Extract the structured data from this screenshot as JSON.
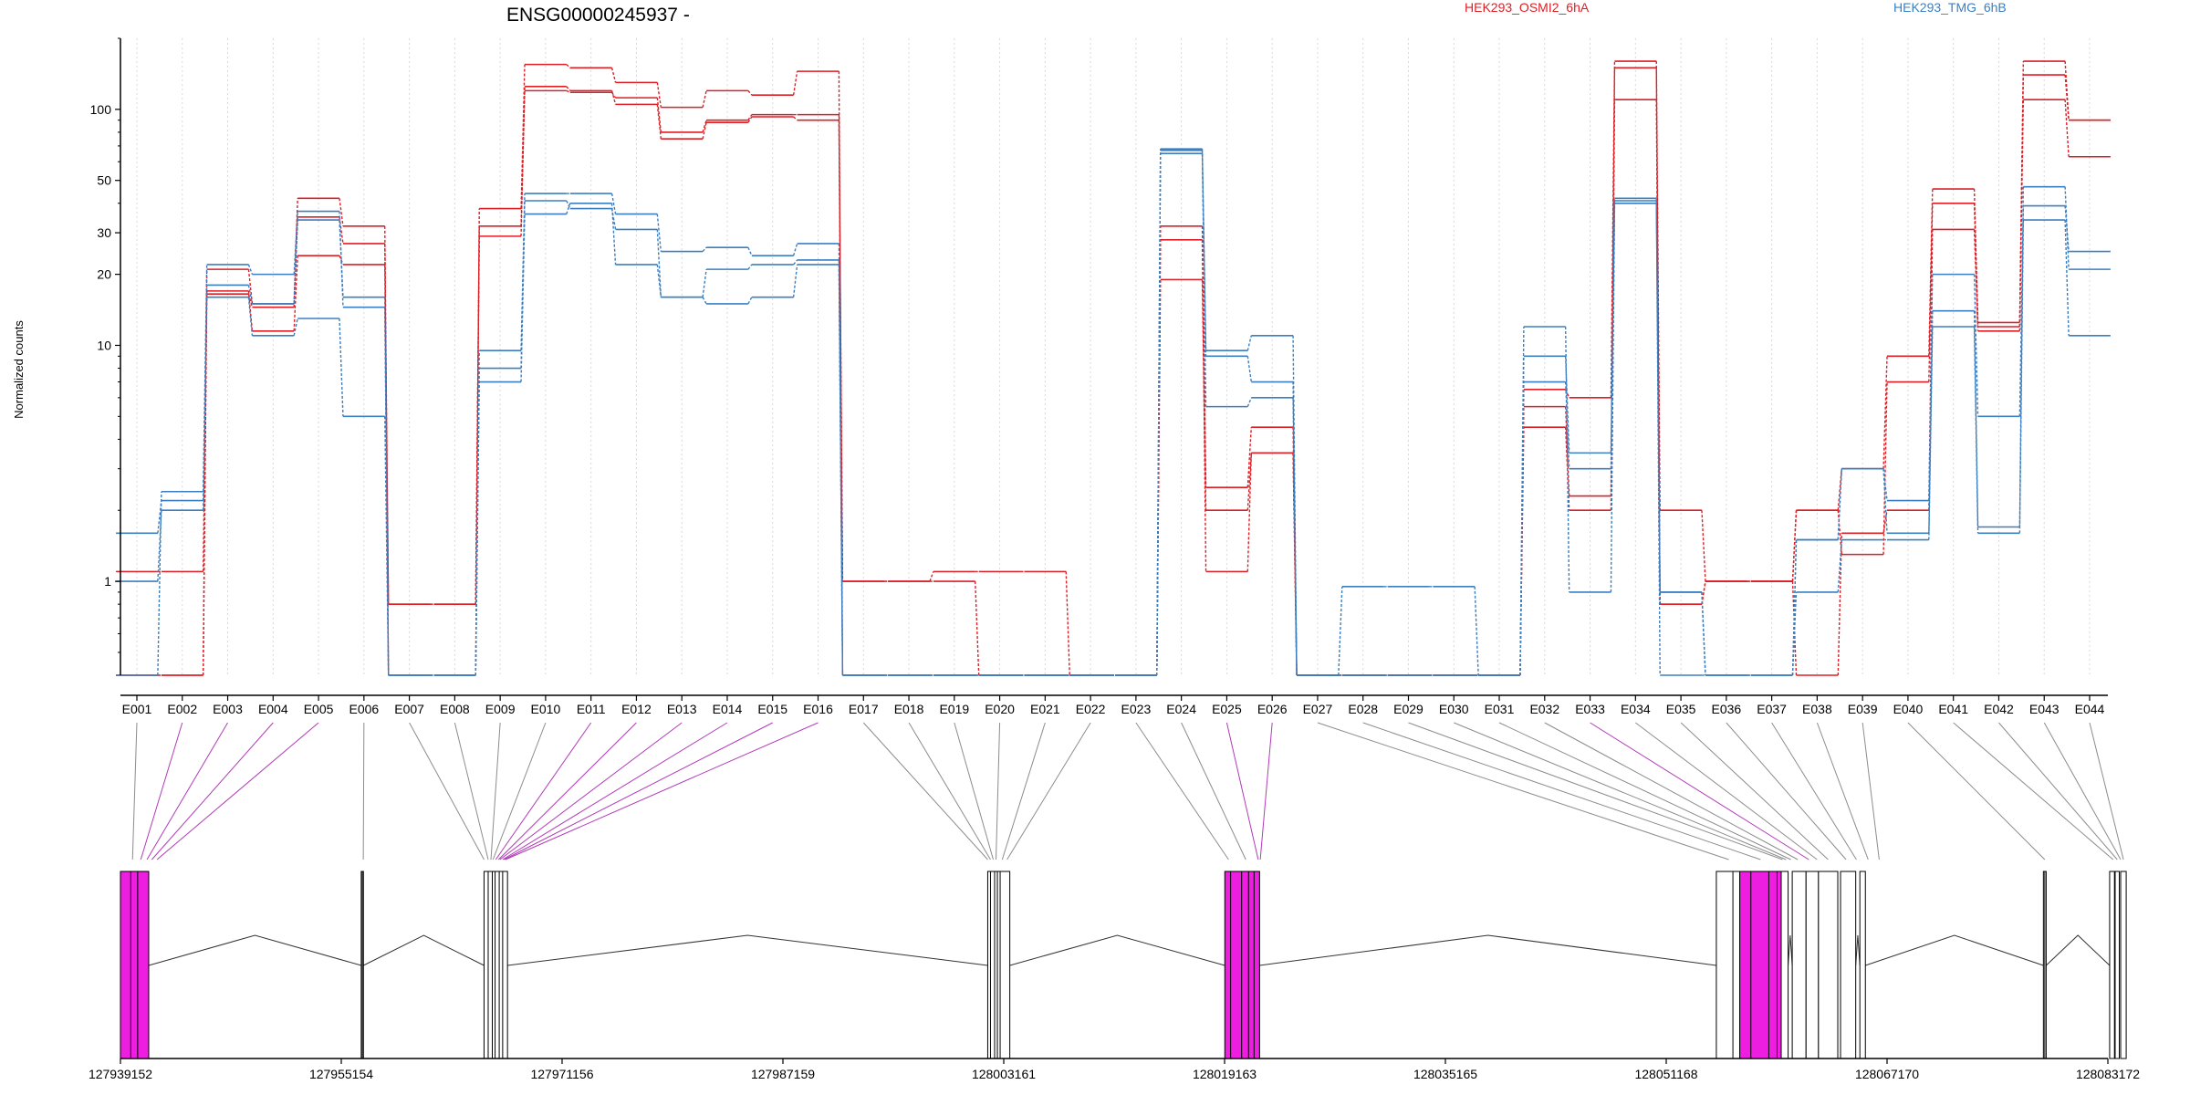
{
  "title": "ENSG00000245937 -",
  "y_axis_label": "Normalized counts",
  "legend": [
    {
      "label": "HEK293_OSMI2_6hA",
      "color": "#dd1f26"
    },
    {
      "label": "HEK293_TMG_6hB",
      "color": "#3b7fc0"
    }
  ],
  "chart_data": {
    "type": "line",
    "yscale": "log",
    "ylim": [
      0.4,
      200
    ],
    "yticks": [
      1,
      10,
      20,
      30,
      50,
      100
    ],
    "ytick_labels": [
      "1",
      "10",
      "20",
      "30",
      "50",
      "100"
    ],
    "exons": [
      "E001",
      "E002",
      "E003",
      "E004",
      "E005",
      "E006",
      "E007",
      "E008",
      "E009",
      "E010",
      "E011",
      "E012",
      "E013",
      "E014",
      "E015",
      "E016",
      "E017",
      "E018",
      "E019",
      "E020",
      "E021",
      "E022",
      "E023",
      "E024",
      "E025",
      "E026",
      "E027",
      "E028",
      "E029",
      "E030",
      "E031",
      "E032",
      "E033",
      "E034",
      "E035",
      "E036",
      "E037",
      "E038",
      "E039",
      "E040",
      "E041",
      "E042",
      "E043",
      "E044"
    ],
    "series": [
      {
        "color": "#dd1f26",
        "values": [
          1.1,
          1.1,
          17,
          11.5,
          24,
          22,
          0.8,
          0.8,
          29,
          125,
          120,
          105,
          75,
          88,
          93,
          90,
          1,
          1,
          1.1,
          1.1,
          1.1,
          0.4,
          0.4,
          19,
          2,
          3.5,
          0.4,
          0.4,
          0.4,
          0.4,
          0.4,
          4.5,
          2,
          110,
          0.8,
          1,
          1,
          0.4,
          1.6,
          2,
          31,
          11.5,
          110,
          63
        ]
      },
      {
        "color": "#dd1f26",
        "values": [
          0.4,
          0.4,
          16.5,
          14.5,
          35,
          27,
          0.8,
          0.8,
          32,
          120,
          118,
          112,
          80,
          90,
          95,
          95,
          1,
          1,
          1,
          0.4,
          0.4,
          0.4,
          0.4,
          28,
          1.1,
          3.5,
          0.4,
          0.4,
          0.4,
          0.4,
          0.4,
          5.5,
          2.3,
          150,
          0.8,
          1,
          1,
          2,
          1.3,
          7,
          40,
          12,
          140,
          90
        ]
      },
      {
        "color": "#dd1f26",
        "values": [
          0.4,
          0.4,
          21,
          15,
          42,
          32,
          0.4,
          0.4,
          38,
          155,
          150,
          130,
          102,
          120,
          115,
          145,
          0.4,
          0.4,
          0.4,
          0.4,
          0.4,
          0.4,
          0.4,
          32,
          2.5,
          4.5,
          0.4,
          0.4,
          0.4,
          0.4,
          0.4,
          6.5,
          6,
          160,
          2,
          1,
          1,
          2,
          3,
          9,
          46,
          12.5,
          160,
          90
        ]
      },
      {
        "color": "#3b7fc0",
        "values": [
          1,
          2,
          16,
          11,
          13,
          5,
          0.4,
          0.4,
          7,
          36,
          40,
          22,
          16,
          15,
          16,
          22,
          0.4,
          0.4,
          0.4,
          0.4,
          0.4,
          0.4,
          0.4,
          65,
          5.5,
          6,
          0.4,
          0.4,
          0.4,
          0.4,
          0.4,
          7,
          3,
          40,
          0.9,
          0.4,
          0.4,
          0.9,
          1.5,
          1.5,
          12,
          1.6,
          34,
          11
        ]
      },
      {
        "color": "#3b7fc0",
        "values": [
          1.6,
          2.2,
          18,
          15,
          34,
          16,
          0.4,
          0.4,
          8,
          41,
          38,
          31,
          16,
          21,
          22,
          23,
          0.4,
          0.4,
          0.4,
          0.4,
          0.4,
          0.4,
          0.4,
          68,
          9,
          7,
          0.4,
          0.4,
          0.4,
          0.4,
          0.4,
          9,
          3.5,
          42,
          0.9,
          0.4,
          0.4,
          1.5,
          3,
          2.2,
          20,
          5,
          39,
          25
        ]
      },
      {
        "color": "#3b7fc0",
        "values": [
          0.4,
          2.4,
          22,
          20,
          37,
          14.5,
          0.4,
          0.4,
          9.5,
          44,
          44,
          36,
          25,
          26,
          24,
          27,
          0.4,
          0.4,
          0.4,
          0.4,
          0.4,
          0.4,
          0.4,
          67,
          9.5,
          11,
          0.4,
          0.95,
          0.95,
          0.95,
          0.4,
          12,
          0.9,
          41,
          0.4,
          0.4,
          0.4,
          1.5,
          3,
          1.6,
          14,
          1.7,
          47,
          21
        ]
      }
    ],
    "exon_genome_map": [
      [
        127939152,
        127940900
      ],
      [
        127940150,
        127941100
      ],
      [
        127940650,
        127941500
      ],
      [
        127941150,
        127941700
      ],
      [
        127941600,
        127942000
      ],
      [
        127956700,
        127956800
      ],
      [
        127965400,
        127965600
      ],
      [
        127965700,
        127965900
      ],
      [
        127965900,
        127966100
      ],
      [
        127966000,
        127966300
      ],
      [
        127966200,
        127966500
      ],
      [
        127966400,
        127966700
      ],
      [
        127966500,
        127966800
      ],
      [
        127966700,
        127967000
      ],
      [
        127966800,
        127967100
      ],
      [
        127966900,
        127967200
      ],
      [
        128001900,
        128002100
      ],
      [
        128002100,
        128002300
      ],
      [
        128002300,
        128002500
      ],
      [
        128002500,
        128002700
      ],
      [
        128002800,
        128003300
      ],
      [
        128003200,
        128003600
      ],
      [
        128019000,
        128019900
      ],
      [
        128019800,
        128021600
      ],
      [
        128021500,
        128021700
      ],
      [
        128021700,
        128021800
      ],
      [
        128054800,
        128056600
      ],
      [
        128056500,
        128059500
      ],
      [
        128059400,
        128059800
      ],
      [
        128059700,
        128060000
      ],
      [
        128059900,
        128060500
      ],
      [
        128060400,
        128061000
      ],
      [
        128060900,
        128062100
      ],
      [
        128062000,
        128062200
      ],
      [
        128062200,
        128063600
      ],
      [
        128063600,
        128064800
      ],
      [
        128064700,
        128065200
      ],
      [
        128065200,
        128066400
      ],
      [
        128066400,
        128066800
      ],
      [
        128078500,
        128078700
      ],
      [
        128083400,
        128083700
      ],
      [
        128083700,
        128084000
      ],
      [
        128084000,
        128084200
      ],
      [
        128084200,
        128084400
      ]
    ],
    "exon_link_highlight": [
      0,
      1,
      1,
      1,
      1,
      0,
      0,
      0,
      0,
      0,
      1,
      1,
      1,
      1,
      1,
      1,
      0,
      0,
      0,
      0,
      0,
      0,
      0,
      0,
      1,
      1,
      0,
      0,
      0,
      0,
      0,
      0,
      1,
      0,
      0,
      0,
      0,
      0,
      0,
      0,
      0,
      0,
      0,
      0
    ],
    "transcript": {
      "range": [
        127939152,
        128083172
      ],
      "ticks": [
        127939152,
        127955154,
        127971156,
        127987159,
        128003161,
        128019163,
        128035165,
        128051168,
        128067170,
        128083172
      ],
      "tick_labels": [
        "127939152",
        "127955154",
        "127971156",
        "127987159",
        "128003161",
        "128019163",
        "128035165",
        "128051168",
        "128067170",
        "128083172"
      ],
      "exon_blocks": [
        {
          "start": 127939152,
          "end": 127941200,
          "fill": "#ee1ee0"
        },
        {
          "start": 127956600,
          "end": 127956760,
          "fill": "#ffffff"
        },
        {
          "start": 127965500,
          "end": 127966100,
          "fill": "#ffffff"
        },
        {
          "start": 127966100,
          "end": 127967200,
          "fill": "#ffffff"
        },
        {
          "start": 128002000,
          "end": 128002700,
          "fill": "#ffffff"
        },
        {
          "start": 128002700,
          "end": 128003600,
          "fill": "#ffffff"
        },
        {
          "start": 128019180,
          "end": 128021700,
          "fill": "#ee1ee0"
        },
        {
          "start": 128054800,
          "end": 128056500,
          "fill": "#ffffff"
        },
        {
          "start": 128056500,
          "end": 128059500,
          "fill": "#ee1ee0"
        },
        {
          "start": 128059500,
          "end": 128060000,
          "fill": "#ffffff"
        },
        {
          "start": 128060300,
          "end": 128061300,
          "fill": "#ffffff"
        },
        {
          "start": 128061300,
          "end": 128062200,
          "fill": "#ffffff"
        },
        {
          "start": 128062200,
          "end": 128063600,
          "fill": "#ffffff"
        },
        {
          "start": 128063800,
          "end": 128064900,
          "fill": "#ffffff"
        },
        {
          "start": 128065200,
          "end": 128065600,
          "fill": "#ffffff"
        },
        {
          "start": 128078500,
          "end": 128078700,
          "fill": "#ffffff"
        },
        {
          "start": 128083300,
          "end": 128083650,
          "fill": "#ffffff"
        },
        {
          "start": 128083700,
          "end": 128084000,
          "fill": "#ffffff"
        },
        {
          "start": 128084100,
          "end": 128084500,
          "fill": "#ffffff"
        }
      ],
      "exon_lines": [
        127939900,
        127940400,
        127956680,
        127965800,
        127966300,
        127966600,
        127966850,
        128002200,
        128002500,
        128002900,
        128019600,
        128020400,
        128020900,
        128021300,
        128056000,
        128057300,
        128058600,
        128059200,
        128078600
      ]
    }
  }
}
